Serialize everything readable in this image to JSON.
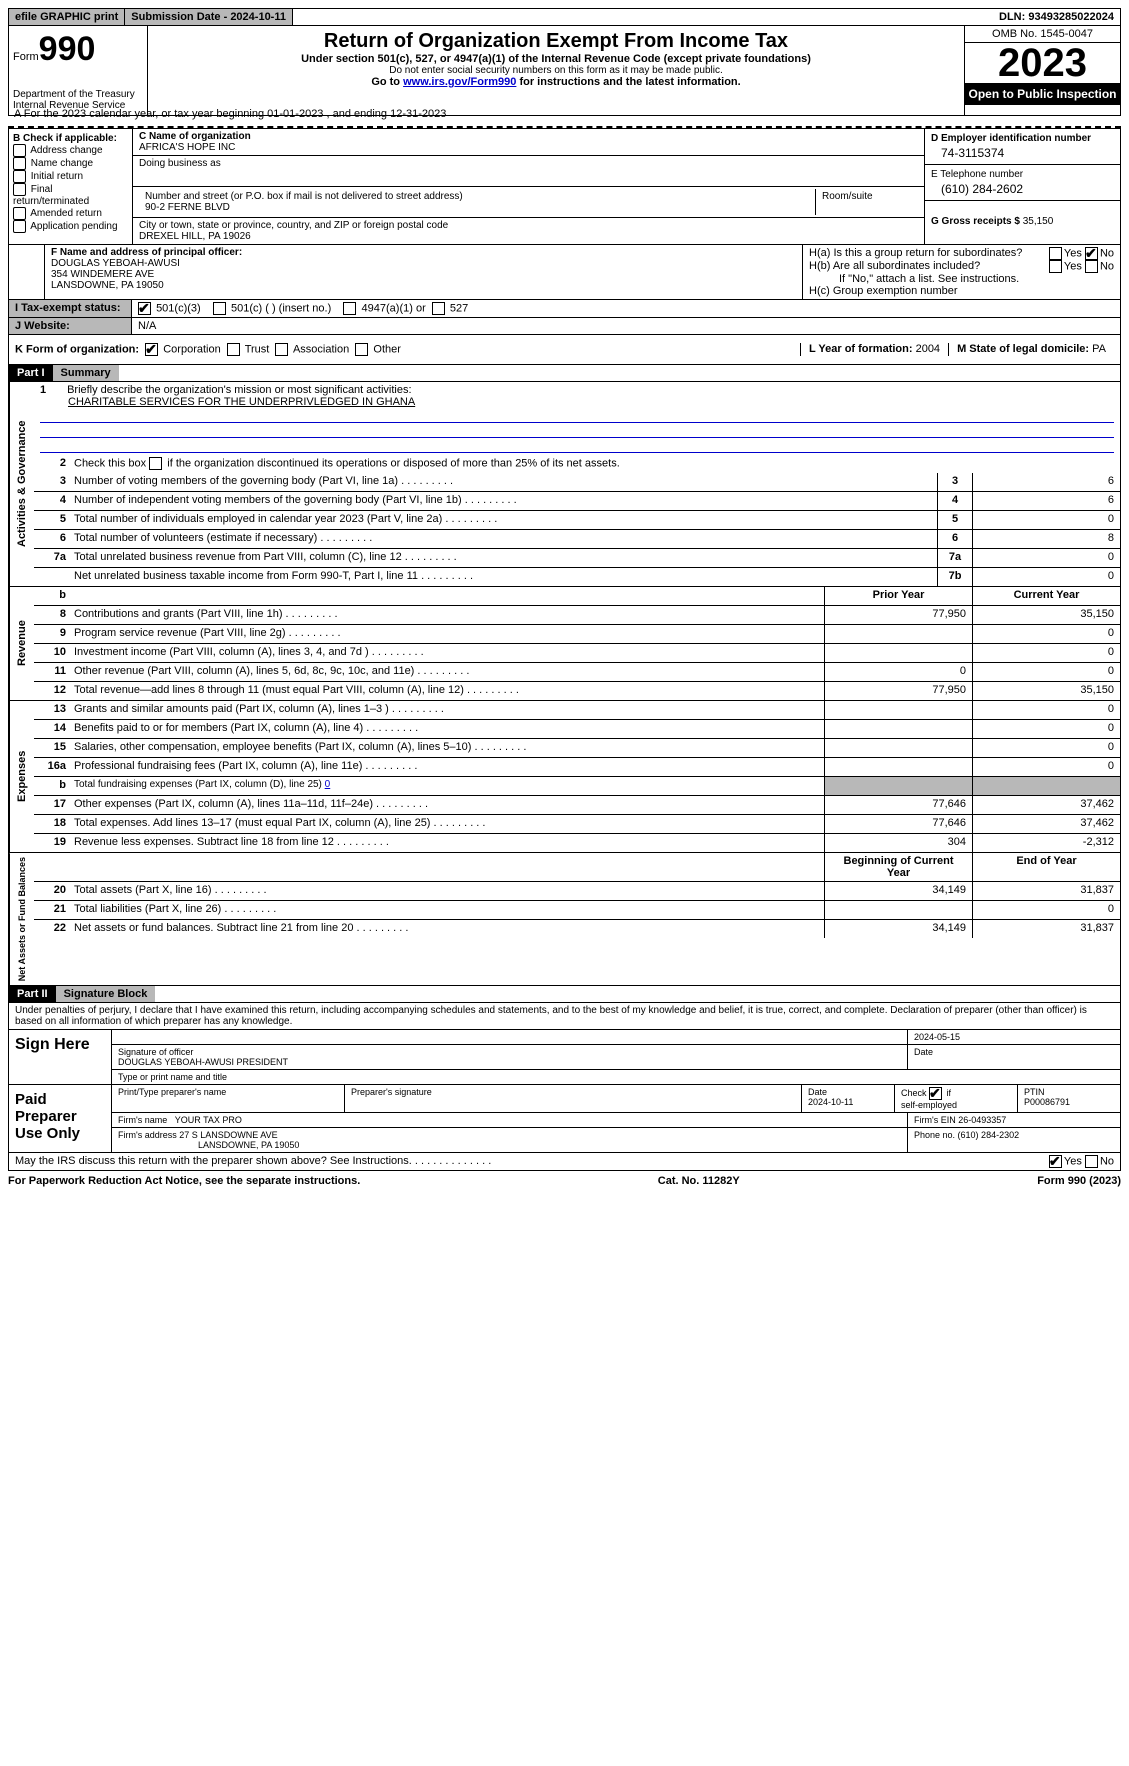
{
  "topbar": {
    "efile": "efile GRAPHIC print",
    "submission_label": "Submission Date - 2024-10-11",
    "dln": "DLN: 93493285022024"
  },
  "header": {
    "form_label": "Form",
    "form_number": "990",
    "dept": "Department of the Treasury",
    "irs": "Internal Revenue Service",
    "title": "Return of Organization Exempt From Income Tax",
    "sub1": "Under section 501(c), 527, or 4947(a)(1) of the Internal Revenue Code (except private foundations)",
    "sub2": "Do not enter social security numbers on this form as it may be made public.",
    "sub3_pre": "Go to ",
    "sub3_link": "www.irs.gov/Form990",
    "sub3_post": " for instructions and the latest information.",
    "omb": "OMB No. 1545-0047",
    "year": "2023",
    "open": "Open to Public Inspection"
  },
  "row_a": "A For the 2023 calendar year, or tax year beginning 01-01-2023    , and ending 12-31-2023",
  "box_b": {
    "title": "B Check if applicable:",
    "opts": [
      "Address change",
      "Name change",
      "Initial return",
      "Final return/terminated",
      "Amended return",
      "Application pending"
    ]
  },
  "box_c": {
    "name_label": "C Name of organization",
    "name": "AFRICA'S HOPE INC",
    "dba_label": "Doing business as",
    "street_label": "Number and street (or P.O. box if mail is not delivered to street address)",
    "room_label": "Room/suite",
    "street": "90-2 FERNE BLVD",
    "city_label": "City or town, state or province, country, and ZIP or foreign postal code",
    "city": "DREXEL HILL, PA  19026"
  },
  "box_d": {
    "label": "D Employer identification number",
    "value": "74-3115374"
  },
  "box_e": {
    "label": "E Telephone number",
    "value": "(610) 284-2602"
  },
  "box_g": {
    "label": "G Gross receipts $ ",
    "value": "35,150"
  },
  "box_f": {
    "label": "F  Name and address of principal officer:",
    "name": "DOUGLAS YEBOAH-AWUSI",
    "addr1": "354 WINDEMERE AVE",
    "addr2": "LANSDOWNE, PA  19050"
  },
  "box_h": {
    "ha": "H(a)  Is this a group return for subordinates?",
    "hb": "H(b)  Are all subordinates included?",
    "hb_note": "If \"No,\" attach a list. See instructions.",
    "hc": "H(c)  Group exemption number  "
  },
  "yes": "Yes",
  "no": "No",
  "row_i": {
    "label": "I    Tax-exempt status:",
    "o1": "501(c)(3)",
    "o2": "501(c) (  ) (insert no.)",
    "o3": "4947(a)(1) or",
    "o4": "527"
  },
  "row_j": {
    "label": "J    Website: ",
    "value": "N/A"
  },
  "row_k": {
    "label": "K Form of organization:",
    "o1": "Corporation",
    "o2": "Trust",
    "o3": "Association",
    "o4": "Other",
    "l_label": "L Year of formation: ",
    "l_val": "2004",
    "m_label": "M State of legal domicile: ",
    "m_val": "PA"
  },
  "part1": {
    "header": "Part I",
    "title": "Summary",
    "q1_label": "1",
    "q1": "Briefly describe the organization's mission or most significant activities:",
    "q1_val": "CHARITABLE SERVICES FOR THE UNDERPRIVLEDGED IN GHANA",
    "q2": "Check this box       if the organization discontinued its operations or disposed of more than 25% of its net assets."
  },
  "vert_labels": {
    "ag": "Activities & Governance",
    "rev": "Revenue",
    "exp": "Expenses",
    "net": "Net Assets or Fund Balances"
  },
  "gov_lines": [
    {
      "n": "3",
      "d": "Number of voting members of the governing body (Part VI, line 1a)",
      "c": "3",
      "v": "6"
    },
    {
      "n": "4",
      "d": "Number of independent voting members of the governing body (Part VI, line 1b)",
      "c": "4",
      "v": "6"
    },
    {
      "n": "5",
      "d": "Total number of individuals employed in calendar year 2023 (Part V, line 2a)",
      "c": "5",
      "v": "0"
    },
    {
      "n": "6",
      "d": "Total number of volunteers (estimate if necessary)",
      "c": "6",
      "v": "8"
    },
    {
      "n": "7a",
      "d": "Total unrelated business revenue from Part VIII, column (C), line 12",
      "c": "7a",
      "v": "0"
    },
    {
      "n": "",
      "d": "Net unrelated business taxable income from Form 990-T, Part I, line 11",
      "c": "7b",
      "v": "0"
    }
  ],
  "col_headers": {
    "prior": "Prior Year",
    "current": "Current Year",
    "begin": "Beginning of Current Year",
    "end": "End of Year"
  },
  "rev_lines": [
    {
      "n": "8",
      "d": "Contributions and grants (Part VIII, line 1h)",
      "p": "77,950",
      "c": "35,150"
    },
    {
      "n": "9",
      "d": "Program service revenue (Part VIII, line 2g)",
      "p": "",
      "c": "0"
    },
    {
      "n": "10",
      "d": "Investment income (Part VIII, column (A), lines 3, 4, and 7d )",
      "p": "",
      "c": "0"
    },
    {
      "n": "11",
      "d": "Other revenue (Part VIII, column (A), lines 5, 6d, 8c, 9c, 10c, and 11e)",
      "p": "0",
      "c": "0"
    },
    {
      "n": "12",
      "d": "Total revenue—add lines 8 through 11 (must equal Part VIII, column (A), line 12)",
      "p": "77,950",
      "c": "35,150"
    }
  ],
  "exp_lines": [
    {
      "n": "13",
      "d": "Grants and similar amounts paid (Part IX, column (A), lines 1–3 )",
      "p": "",
      "c": "0"
    },
    {
      "n": "14",
      "d": "Benefits paid to or for members (Part IX, column (A), line 4)",
      "p": "",
      "c": "0"
    },
    {
      "n": "15",
      "d": "Salaries, other compensation, employee benefits (Part IX, column (A), lines 5–10)",
      "p": "",
      "c": "0"
    },
    {
      "n": "16a",
      "d": "Professional fundraising fees (Part IX, column (A), line 11e)",
      "p": "",
      "c": "0"
    },
    {
      "n": "b",
      "d": "Total fundraising expenses (Part IX, column (D), line 25) ",
      "sp": true,
      "link": "0"
    },
    {
      "n": "17",
      "d": "Other expenses (Part IX, column (A), lines 11a–11d, 11f–24e)",
      "p": "77,646",
      "c": "37,462"
    },
    {
      "n": "18",
      "d": "Total expenses. Add lines 13–17 (must equal Part IX, column (A), line 25)",
      "p": "77,646",
      "c": "37,462"
    },
    {
      "n": "19",
      "d": "Revenue less expenses. Subtract line 18 from line 12",
      "p": "304",
      "c": "-2,312"
    }
  ],
  "net_lines": [
    {
      "n": "20",
      "d": "Total assets (Part X, line 16)",
      "p": "34,149",
      "c": "31,837"
    },
    {
      "n": "21",
      "d": "Total liabilities (Part X, line 26)",
      "p": "",
      "c": "0"
    },
    {
      "n": "22",
      "d": "Net assets or fund balances. Subtract line 21 from line 20",
      "p": "34,149",
      "c": "31,837"
    }
  ],
  "part2": {
    "header": "Part II",
    "title": "Signature Block",
    "text": "Under penalties of perjury, I declare that I have examined this return, including accompanying schedules and statements, and to the best of my knowledge and belief, it is true, correct, and complete. Declaration of preparer (other than officer) is based on all information of which preparer has any knowledge."
  },
  "sign": {
    "here": "Sign Here",
    "sig_label": "Signature of officer",
    "name": "DOUGLAS YEBOAH-AWUSI PRESIDENT",
    "type_label": "Type or print name and title",
    "date_label": "Date",
    "date": "2024-05-15"
  },
  "paid": {
    "label": "Paid Preparer Use Only",
    "prep_name_label": "Print/Type preparer's name",
    "prep_sig_label": "Preparer's signature",
    "date_label": "Date",
    "date": "2024-10-11",
    "check_label": "Check         if self-employed",
    "ptin_label": "PTIN",
    "ptin": "P00086791",
    "firm_name_label": "Firm's name   ",
    "firm_name": "YOUR TAX PRO",
    "firm_ein_label": "Firm's EIN  ",
    "firm_ein": "26-0493357",
    "firm_addr_label": "Firm's address ",
    "firm_addr1": "27 S LANSDOWNE AVE",
    "firm_addr2": "LANSDOWNE, PA  19050",
    "phone_label": "Phone no. ",
    "phone": "(610) 284-2302"
  },
  "discuss": "May the IRS discuss this return with the preparer shown above? See Instructions.  .   .   .   .   .   .   .   .   .   .   .   .   .",
  "footer": {
    "left": "For Paperwork Reduction Act Notice, see the separate instructions.",
    "mid": "Cat. No. 11282Y",
    "right_pre": "Form ",
    "right_form": "990",
    "right_post": " (2023)"
  },
  "colors": {
    "link": "#0000cc",
    "shade": "#b8b8b8",
    "black": "#000000",
    "white": "#ffffff"
  }
}
